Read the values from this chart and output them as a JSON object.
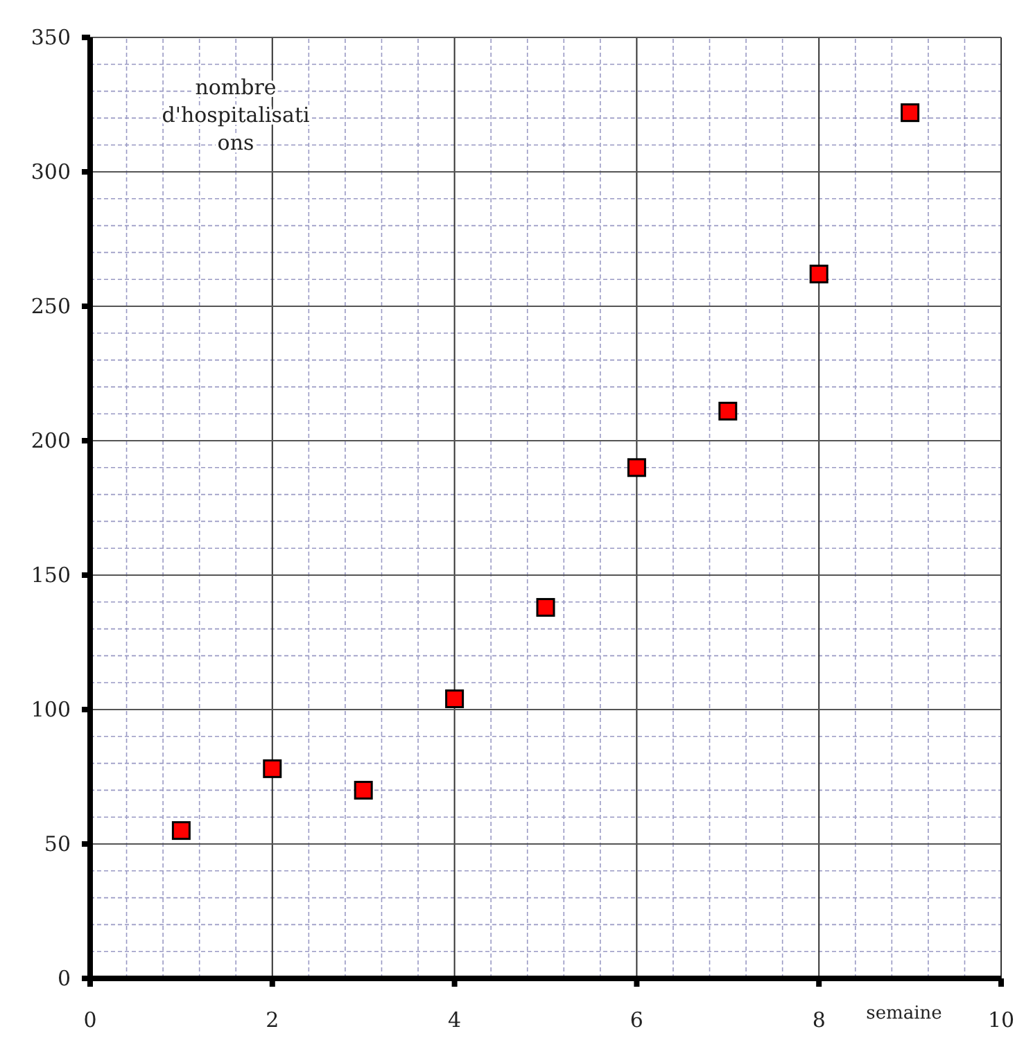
{
  "chart_data": {
    "type": "scatter",
    "xlabel": "semaine",
    "ylabel": "nombre d'hospitalisations",
    "x": [
      1,
      2,
      3,
      4,
      5,
      6,
      7,
      8,
      9
    ],
    "values": [
      55,
      78,
      70,
      104,
      138,
      190,
      211,
      262,
      322
    ],
    "color": "#ff0000",
    "marker": "square",
    "xlim": [
      0,
      10
    ],
    "xticks": [
      0,
      {
        "value": 0.4,
        "label": null
      },
      {
        "value": 0.8,
        "label": null
      },
      {
        "value": 1.2,
        "label": null
      },
      {
        "value": 1.6,
        "label": null
      },
      2,
      {
        "value": 2.4,
        "label": null
      },
      {
        "value": 2.8,
        "label": null
      },
      {
        "value": 3.2,
        "label": null
      },
      {
        "value": 3.6,
        "label": null
      },
      4,
      {
        "value": 4.4,
        "label": null
      },
      {
        "value": 4.8,
        "label": null
      },
      {
        "value": 5.2,
        "label": null
      },
      {
        "value": 5.6,
        "label": null
      },
      6,
      {
        "value": 6.4,
        "label": null
      },
      {
        "value": 6.8,
        "label": null
      },
      {
        "value": 7.2,
        "label": null
      },
      {
        "value": 7.6,
        "label": null
      },
      8,
      {
        "value": 8.4,
        "label": null
      },
      {
        "value": 8.8,
        "label": null
      },
      {
        "value": 9.2,
        "label": null
      },
      {
        "value": 9.6,
        "label": null
      },
      10
    ],
    "ylim": [
      0,
      350
    ],
    "yticks": [
      0,
      {
        "value": 10,
        "label": null
      },
      {
        "value": 20,
        "label": null
      },
      {
        "value": 30,
        "label": null
      },
      {
        "value": 40,
        "label": null
      },
      50,
      {
        "value": 60,
        "label": null
      },
      {
        "value": 70,
        "label": null
      },
      {
        "value": 80,
        "label": null
      },
      {
        "value": 90,
        "label": null
      },
      100,
      {
        "value": 110,
        "label": null
      },
      {
        "value": 120,
        "label": null
      },
      {
        "value": 130,
        "label": null
      },
      {
        "value": 140,
        "label": null
      },
      150,
      {
        "value": 160,
        "label": null
      },
      {
        "value": 170,
        "label": null
      },
      {
        "value": 180,
        "label": null
      },
      {
        "value": 190,
        "label": null
      },
      200,
      {
        "value": 210,
        "label": null
      },
      {
        "value": 220,
        "label": null
      },
      {
        "value": 230,
        "label": null
      },
      {
        "value": 240,
        "label": null
      },
      250,
      {
        "value": 260,
        "label": null
      },
      {
        "value": 270,
        "label": null
      },
      {
        "value": 280,
        "label": null
      },
      {
        "value": 290,
        "label": null
      },
      300,
      {
        "value": 310,
        "label": null
      },
      {
        "value": 320,
        "label": null
      },
      {
        "value": 330,
        "label": null
      },
      {
        "value": 340,
        "label": null
      },
      350
    ],
    "grid": true
  }
}
